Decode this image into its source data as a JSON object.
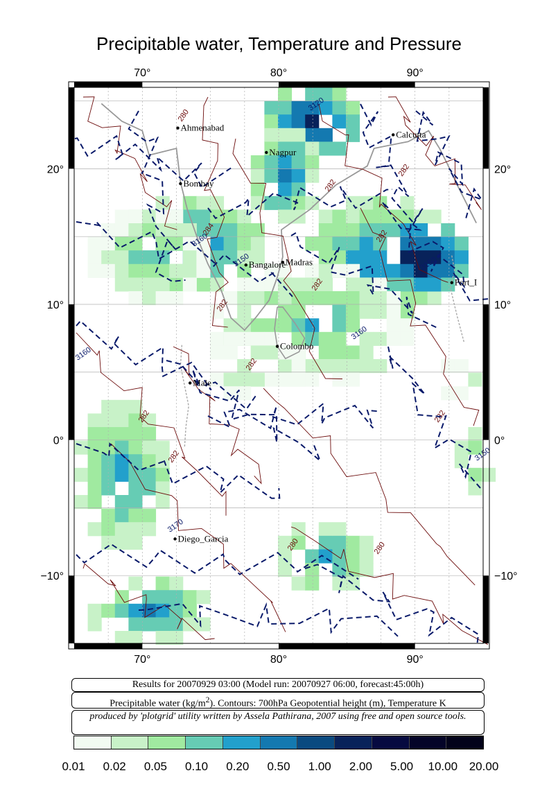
{
  "title": "Precipitable water, Temperature and Pressure",
  "map": {
    "lon_range": [
      65,
      95
    ],
    "lat_range": [
      -15,
      26
    ],
    "lon_ticks": [
      70,
      80,
      90
    ],
    "lat_ticks": [
      20,
      10,
      0,
      -10
    ],
    "lon_tick_labels": [
      "70°",
      "80°",
      "90°"
    ],
    "lat_tick_labels": [
      "20°",
      "10°",
      "0°",
      "−10°"
    ],
    "cities": [
      {
        "name": "Ahmenabad",
        "lon": 72.6,
        "lat": 23.0
      },
      {
        "name": "Calcutta",
        "lon": 88.4,
        "lat": 22.5
      },
      {
        "name": "Nagpur",
        "lon": 79.1,
        "lat": 21.2
      },
      {
        "name": "Bombay",
        "lon": 72.8,
        "lat": 18.9
      },
      {
        "name": "Madras",
        "lon": 80.3,
        "lat": 13.1
      },
      {
        "name": "Bangalore",
        "lon": 77.6,
        "lat": 12.9
      },
      {
        "name": "Port_I",
        "lon": 92.7,
        "lat": 11.6
      },
      {
        "name": "Colombo",
        "lon": 79.9,
        "lat": 6.9
      },
      {
        "name": "Male",
        "lon": 73.5,
        "lat": 4.2
      },
      {
        "name": "Diego_Garcia",
        "lon": 72.4,
        "lat": -7.3
      }
    ],
    "temperature_contour_labels": [
      "280",
      "282",
      "284",
      "282",
      "282",
      "282",
      "282",
      "282",
      "282",
      "282",
      "280",
      "280",
      "282"
    ],
    "height_contour_labels": [
      "3120",
      "3150",
      "3150",
      "3160",
      "3160",
      "3160",
      "3170",
      "3150"
    ]
  },
  "info": {
    "line1": "Results for 20070929 03:00 (Model run: 20070927 06:00, forecast:45:00h)",
    "line2_pre": "Precipitable water (kg/m",
    "line2_sup": "2",
    "line2_post": ").  Contours: 700hPa Geopotential height (m), Temperature K",
    "line3": "produced by 'plotgrid' utility written by Assela Pathirana, 2007 using free and open source tools."
  },
  "colorbar": {
    "colors": [
      "#f2fbf2",
      "#c8f2c8",
      "#a0eaa0",
      "#66ccb4",
      "#22a0cc",
      "#1479b0",
      "#0a4a80",
      "#08225a",
      "#060a40",
      "#040428",
      "#02021a"
    ],
    "labels": [
      "0.01",
      "0.02",
      "0.05",
      "0.10",
      "0.20",
      "0.50",
      "1.00",
      "2.00",
      "5.00",
      "10.00",
      "20.00"
    ]
  }
}
